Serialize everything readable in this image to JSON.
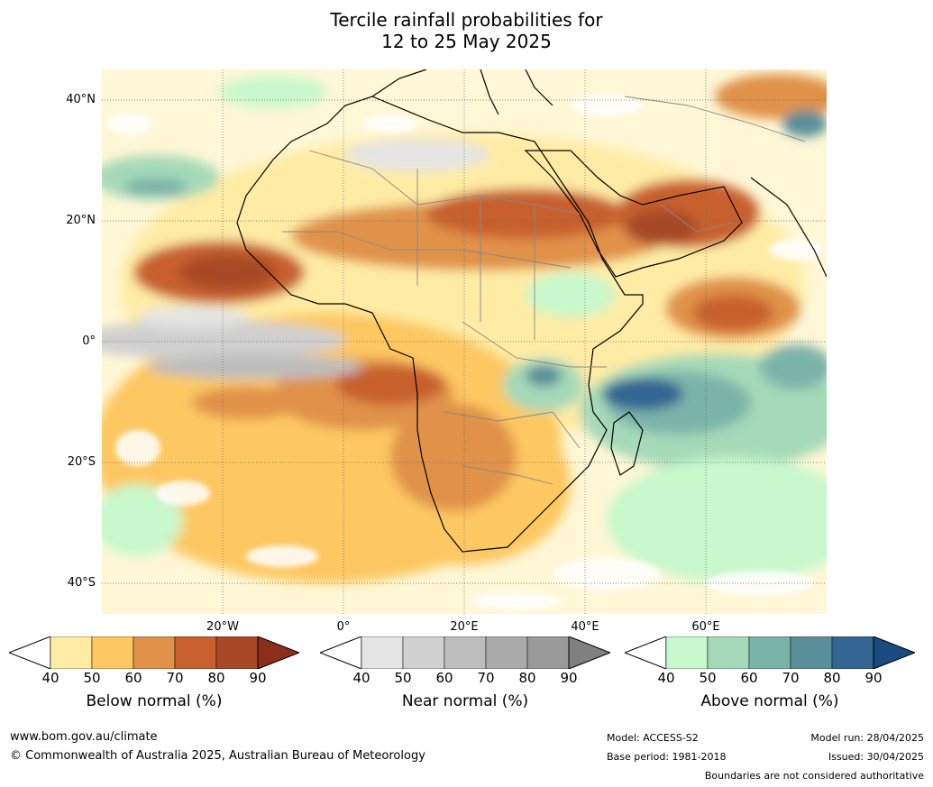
{
  "title": [
    "Tercile rainfall probabilities for",
    "12 to 25 May 2025"
  ],
  "map": {
    "lat_labels": [
      "40°N",
      "20°N",
      "0°",
      "20°S",
      "40°S"
    ],
    "lon_labels": [
      "20°W",
      "0°",
      "20°E",
      "40°E",
      "60°E"
    ],
    "region": "Africa, Middle East and adjacent oceans"
  },
  "colorbars": [
    {
      "title": "Below normal (%)",
      "ticks": [
        "40",
        "50",
        "60",
        "70",
        "80",
        "90"
      ],
      "colors": [
        "#ffeca4",
        "#fdc862",
        "#e0924a",
        "#c8612f",
        "#a84827",
        "#8b2e1b"
      ]
    },
    {
      "title": "Near normal (%)",
      "ticks": [
        "40",
        "50",
        "60",
        "70",
        "80",
        "90"
      ],
      "colors": [
        "#e4e4e4",
        "#d0d0d0",
        "#bdbdbd",
        "#ababab",
        "#9a9a9a",
        "#808080"
      ]
    },
    {
      "title": "Above normal (%)",
      "ticks": [
        "40",
        "50",
        "60",
        "70",
        "80",
        "90"
      ],
      "colors": [
        "#c8f8cc",
        "#a6d9b8",
        "#7ab4a9",
        "#5a8f9a",
        "#336693",
        "#194b80"
      ]
    }
  ],
  "footer": {
    "website": "www.bom.gov.au/climate",
    "copyright": "© Commonwealth of Australia 2025, Australian Bureau of Meteorology",
    "model": "Model: ACCESS-S2",
    "base_period": "Base period: 1981-2018",
    "model_run": "Model run: 28/04/2025",
    "issued": "Issued: 30/04/2025",
    "disclaimer": "Boundaries are not considered authoritative"
  }
}
